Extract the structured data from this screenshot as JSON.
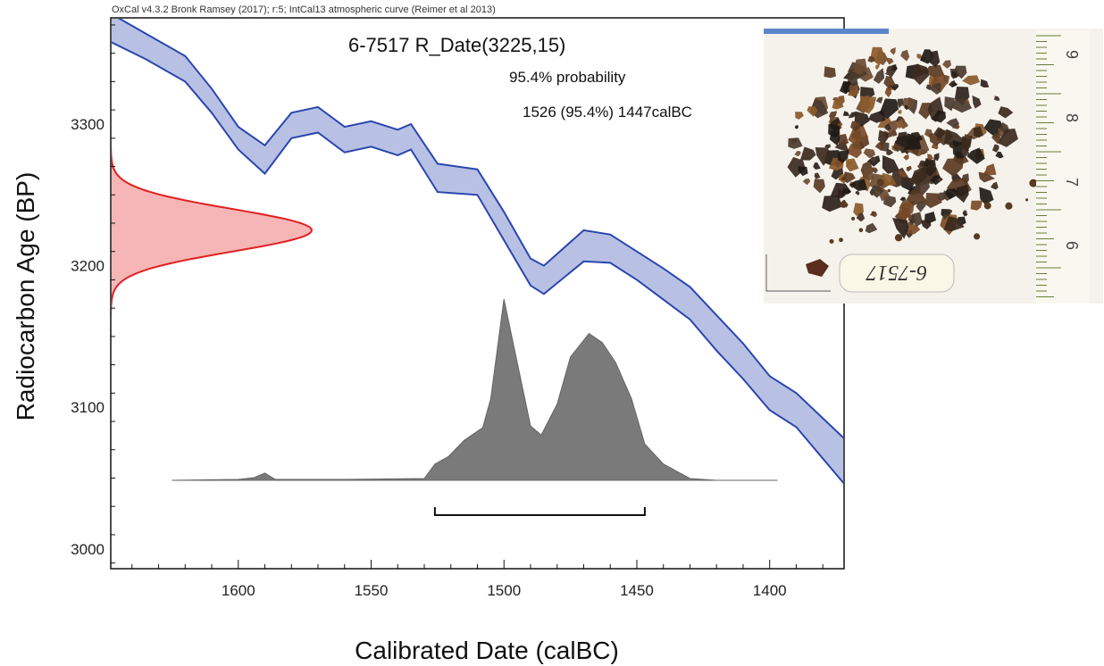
{
  "header": {
    "text": "OxCal v4.3.2 Bronk Ramsey (2017); r:5; IntCal13 atmospheric curve (Reimer et al 2013)"
  },
  "chart_data": {
    "type": "area",
    "title": "6-7517 R_Date(3225,15)",
    "probability_label": "95.4% probability",
    "range_label": "1526 (95.4%) 1447calBC",
    "xlabel": "Calibrated Date (calBC)",
    "ylabel": "Radiocarbon Age (BP)",
    "xlim": [
      1648,
      1372
    ],
    "ylim": [
      2986,
      3375
    ],
    "x_ticks": [
      1600,
      1550,
      1500,
      1450,
      1400
    ],
    "y_ticks": [
      3000,
      3100,
      3200,
      3300
    ],
    "calibration_curve": {
      "x": [
        1648,
        1635,
        1620,
        1610,
        1600,
        1590,
        1580,
        1570,
        1560,
        1550,
        1540,
        1535,
        1525,
        1510,
        1500,
        1490,
        1485,
        1470,
        1460,
        1450,
        1440,
        1430,
        1420,
        1410,
        1400,
        1390,
        1372
      ],
      "upper": [
        3378,
        3364,
        3348,
        3325,
        3298,
        3285,
        3308,
        3312,
        3298,
        3302,
        3296,
        3300,
        3272,
        3268,
        3238,
        3205,
        3200,
        3225,
        3222,
        3210,
        3198,
        3185,
        3165,
        3145,
        3122,
        3110,
        3078
      ],
      "lower": [
        3358,
        3346,
        3330,
        3308,
        3282,
        3265,
        3290,
        3294,
        3280,
        3284,
        3278,
        3282,
        3252,
        3250,
        3218,
        3186,
        3180,
        3203,
        3202,
        3190,
        3176,
        3162,
        3140,
        3120,
        3098,
        3086,
        3046
      ]
    },
    "radiocarbon_date": {
      "mean": 3225,
      "sd": 15
    },
    "calibrated_distribution": {
      "x": [
        1625,
        1600,
        1594,
        1590,
        1586,
        1560,
        1530,
        1526,
        1521,
        1515,
        1508,
        1505,
        1500,
        1496,
        1490,
        1486,
        1480,
        1475,
        1468,
        1463,
        1458,
        1452,
        1447,
        1440,
        1430,
        1420,
        1397
      ],
      "density": [
        0,
        0.005,
        0.015,
        0.04,
        0.005,
        0.005,
        0.01,
        0.09,
        0.13,
        0.22,
        0.29,
        0.45,
        1.0,
        0.72,
        0.3,
        0.25,
        0.42,
        0.68,
        0.81,
        0.76,
        0.65,
        0.45,
        0.2,
        0.09,
        0.01,
        0,
        0
      ]
    },
    "range_95": {
      "from": 1526,
      "to": 1447
    }
  },
  "photo": {
    "label_text": "6-7517",
    "ruler_numbers": [
      "9",
      "8",
      "7",
      "6"
    ]
  },
  "colors": {
    "curve_line": "#2a46ae",
    "curve_fill": "#b8c1e4",
    "date_line": "#e02020",
    "date_fill": "#f6b6b6",
    "distribution_fill": "#7a7a7a",
    "axis": "#111111"
  }
}
